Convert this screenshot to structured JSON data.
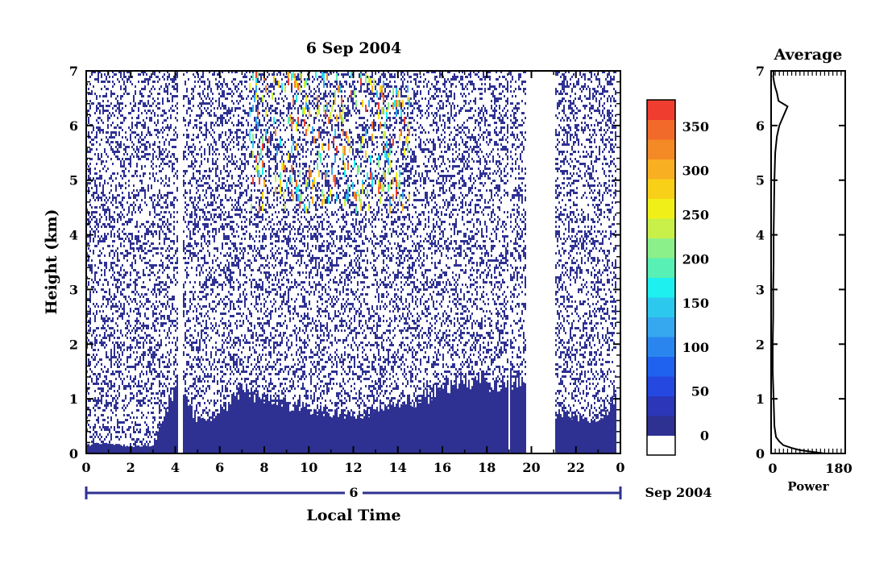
{
  "chart_data": [
    {
      "type": "heatmap",
      "title": "6 Sep 2004",
      "xlabel": "Local Time",
      "ylabel": "Height (km)",
      "xlim": [
        0,
        24
      ],
      "ylim": [
        0,
        7
      ],
      "x_ticks": [
        "0",
        "2",
        "4",
        "6",
        "8",
        "10",
        "12",
        "14",
        "16",
        "18",
        "20",
        "22",
        "0"
      ],
      "y_ticks": [
        "0",
        "1",
        "2",
        "3",
        "4",
        "5",
        "6",
        "7"
      ],
      "date_axis": {
        "day_label": "6",
        "month_label": "Sep 2004"
      },
      "data_gaps_hours": [
        [
          4.1,
          4.3
        ],
        [
          18.9,
          19.0
        ],
        [
          19.7,
          21.0
        ],
        [
          23.8,
          23.9
        ]
      ],
      "low_layer_height_km": [
        [
          0,
          0.15
        ],
        [
          1,
          0.2
        ],
        [
          2,
          0.12
        ],
        [
          3,
          0.15
        ],
        [
          4,
          1.3
        ],
        [
          5,
          0.6
        ],
        [
          6,
          0.7
        ],
        [
          7,
          1.2
        ],
        [
          8,
          1.0
        ],
        [
          9,
          0.9
        ],
        [
          10,
          0.8
        ],
        [
          11,
          0.75
        ],
        [
          12,
          0.7
        ],
        [
          13,
          0.8
        ],
        [
          14,
          0.9
        ],
        [
          15,
          1.0
        ],
        [
          16,
          1.2
        ],
        [
          17,
          1.4
        ],
        [
          18,
          1.3
        ],
        [
          19,
          1.35
        ],
        [
          19.7,
          1.35
        ],
        [
          21,
          0.7
        ],
        [
          22,
          0.7
        ],
        [
          23,
          0.55
        ],
        [
          24,
          1.2
        ]
      ],
      "high_echo_region": {
        "x_range": [
          7.3,
          14.5
        ],
        "y_range": [
          4.5,
          7
        ]
      },
      "colorbar": {
        "ticks": [
          "0",
          "50",
          "100",
          "150",
          "200",
          "250",
          "300",
          "350"
        ],
        "range": [
          0,
          380
        ],
        "colors": [
          "#ffffff",
          "#2e3192",
          "#2b36b8",
          "#2448e0",
          "#1f62f0",
          "#2a86ee",
          "#35a8f0",
          "#2cc8ee",
          "#1ef0f0",
          "#58f0b4",
          "#8cf08a",
          "#c8f048",
          "#f0f018",
          "#f8d018",
          "#f8b022",
          "#f48a26",
          "#f26a2a",
          "#ef3e30"
        ]
      }
    },
    {
      "type": "line",
      "title": "Average",
      "xlabel": "Power",
      "ylabel": "",
      "xlim": [
        0,
        180
      ],
      "ylim": [
        0,
        7
      ],
      "x_ticks": [
        "0",
        "180"
      ],
      "y_ticks": [
        "0",
        "1",
        "2",
        "3",
        "4",
        "5",
        "6",
        "7"
      ],
      "x": [
        130,
        100,
        70,
        50,
        30,
        20,
        12,
        8,
        6,
        4,
        4,
        5,
        5,
        6,
        6,
        7,
        8,
        10,
        14,
        20,
        40,
        18,
        14,
        10,
        7,
        5,
        6,
        5
      ],
      "y": [
        0.0,
        0.03,
        0.06,
        0.1,
        0.15,
        0.22,
        0.3,
        0.5,
        1.0,
        1.5,
        2.0,
        2.5,
        3.0,
        3.5,
        4.0,
        4.5,
        5.0,
        5.5,
        5.8,
        6.0,
        6.35,
        6.45,
        6.6,
        6.7,
        6.8,
        6.9,
        6.95,
        7.0
      ]
    }
  ]
}
